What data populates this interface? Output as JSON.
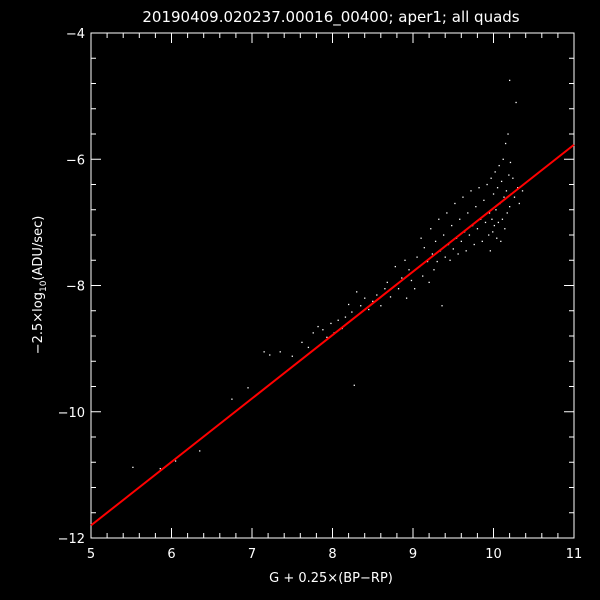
{
  "chart_data": {
    "type": "scatter",
    "title": "20190409.020237.00016_00400; aper1; all quads",
    "xlabel": "G + 0.25×(BP−RP)",
    "ylabel_prefix": "−2.5×log",
    "ylabel_sub": "10",
    "ylabel_suffix": "(ADU/sec)",
    "xlim": [
      5,
      11
    ],
    "ylim": [
      -12,
      -4
    ],
    "xticks": [
      5,
      6,
      7,
      8,
      9,
      10,
      11
    ],
    "yticks": [
      -12,
      -10,
      -8,
      -6,
      -4
    ],
    "xtick_labels": [
      "5",
      "6",
      "7",
      "8",
      "9",
      "10",
      "11"
    ],
    "ytick_labels": [
      "−12",
      "−10",
      "−8",
      "−6",
      "−4"
    ],
    "background_color": "#000000",
    "foreground_color": "#ffffff",
    "fit_color": "#ff0000",
    "fit_line": {
      "x": [
        5,
        11
      ],
      "y": [
        -11.8,
        -5.77
      ]
    },
    "points": [
      [
        5.52,
        -10.88
      ],
      [
        5.86,
        -10.9
      ],
      [
        6.05,
        -10.78
      ],
      [
        6.35,
        -10.62
      ],
      [
        6.75,
        -9.8
      ],
      [
        6.95,
        -9.62
      ],
      [
        7.15,
        -9.05
      ],
      [
        7.22,
        -9.1
      ],
      [
        7.35,
        -9.05
      ],
      [
        7.5,
        -9.12
      ],
      [
        7.62,
        -8.9
      ],
      [
        7.7,
        -8.98
      ],
      [
        7.76,
        -8.75
      ],
      [
        7.82,
        -8.65
      ],
      [
        7.88,
        -8.7
      ],
      [
        7.93,
        -8.82
      ],
      [
        7.98,
        -8.6
      ],
      [
        8.02,
        -8.75
      ],
      [
        8.07,
        -8.55
      ],
      [
        8.12,
        -8.68
      ],
      [
        8.16,
        -8.5
      ],
      [
        8.2,
        -8.3
      ],
      [
        8.24,
        -8.42
      ],
      [
        8.27,
        -9.58
      ],
      [
        8.3,
        -8.1
      ],
      [
        8.35,
        -8.32
      ],
      [
        8.4,
        -8.2
      ],
      [
        8.45,
        -8.38
      ],
      [
        8.5,
        -8.25
      ],
      [
        8.55,
        -8.15
      ],
      [
        8.6,
        -8.32
      ],
      [
        8.65,
        -8.05
      ],
      [
        8.68,
        -7.95
      ],
      [
        8.72,
        -8.18
      ],
      [
        8.78,
        -7.7
      ],
      [
        8.82,
        -8.05
      ],
      [
        8.86,
        -7.88
      ],
      [
        8.9,
        -7.6
      ],
      [
        8.92,
        -8.2
      ],
      [
        8.95,
        -7.75
      ],
      [
        8.98,
        -7.92
      ],
      [
        9.02,
        -8.05
      ],
      [
        9.05,
        -7.55
      ],
      [
        9.08,
        -7.7
      ],
      [
        9.1,
        -7.25
      ],
      [
        9.12,
        -7.85
      ],
      [
        9.14,
        -7.4
      ],
      [
        9.18,
        -7.62
      ],
      [
        9.2,
        -7.95
      ],
      [
        9.22,
        -7.1
      ],
      [
        9.24,
        -7.5
      ],
      [
        9.26,
        -7.75
      ],
      [
        9.28,
        -7.3
      ],
      [
        9.3,
        -7.62
      ],
      [
        9.32,
        -6.95
      ],
      [
        9.34,
        -7.45
      ],
      [
        9.36,
        -8.32
      ],
      [
        9.38,
        -7.2
      ],
      [
        9.4,
        -7.55
      ],
      [
        9.42,
        -6.85
      ],
      [
        9.44,
        -7.35
      ],
      [
        9.46,
        -7.6
      ],
      [
        9.48,
        -7.05
      ],
      [
        9.5,
        -7.42
      ],
      [
        9.52,
        -6.7
      ],
      [
        9.54,
        -7.25
      ],
      [
        9.56,
        -7.5
      ],
      [
        9.58,
        -6.95
      ],
      [
        9.6,
        -7.3
      ],
      [
        9.62,
        -6.6
      ],
      [
        9.64,
        -7.15
      ],
      [
        9.66,
        -7.45
      ],
      [
        9.68,
        -6.85
      ],
      [
        9.7,
        -7.2
      ],
      [
        9.72,
        -6.5
      ],
      [
        9.74,
        -7.05
      ],
      [
        9.76,
        -7.35
      ],
      [
        9.78,
        -6.75
      ],
      [
        9.8,
        -7.1
      ],
      [
        9.82,
        -6.45
      ],
      [
        9.84,
        -6.95
      ],
      [
        9.86,
        -7.3
      ],
      [
        9.88,
        -6.65
      ],
      [
        9.9,
        -7.0
      ],
      [
        9.92,
        -6.4
      ],
      [
        9.94,
        -7.2
      ],
      [
        9.95,
        -6.85
      ],
      [
        9.96,
        -7.45
      ],
      [
        9.97,
        -6.3
      ],
      [
        9.98,
        -6.95
      ],
      [
        9.99,
        -7.15
      ],
      [
        10.0,
        -6.55
      ],
      [
        10.01,
        -7.05
      ],
      [
        10.02,
        -6.2
      ],
      [
        10.03,
        -6.8
      ],
      [
        10.04,
        -7.25
      ],
      [
        10.05,
        -6.45
      ],
      [
        10.06,
        -7.0
      ],
      [
        10.07,
        -6.1
      ],
      [
        10.08,
        -6.7
      ],
      [
        10.09,
        -7.3
      ],
      [
        10.1,
        -6.35
      ],
      [
        10.11,
        -6.95
      ],
      [
        10.12,
        -6.0
      ],
      [
        10.13,
        -6.6
      ],
      [
        10.14,
        -7.1
      ],
      [
        10.15,
        -5.75
      ],
      [
        10.16,
        -6.5
      ],
      [
        10.17,
        -6.85
      ],
      [
        10.18,
        -5.6
      ],
      [
        10.19,
        -6.25
      ],
      [
        10.2,
        -6.75
      ],
      [
        10.21,
        -6.05
      ],
      [
        10.22,
        -6.55
      ],
      [
        10.24,
        -6.3
      ],
      [
        10.26,
        -6.6
      ],
      [
        10.28,
        -5.1
      ],
      [
        10.3,
        -6.45
      ],
      [
        10.32,
        -6.7
      ],
      [
        10.36,
        -6.5
      ],
      [
        10.2,
        -4.75
      ]
    ]
  }
}
